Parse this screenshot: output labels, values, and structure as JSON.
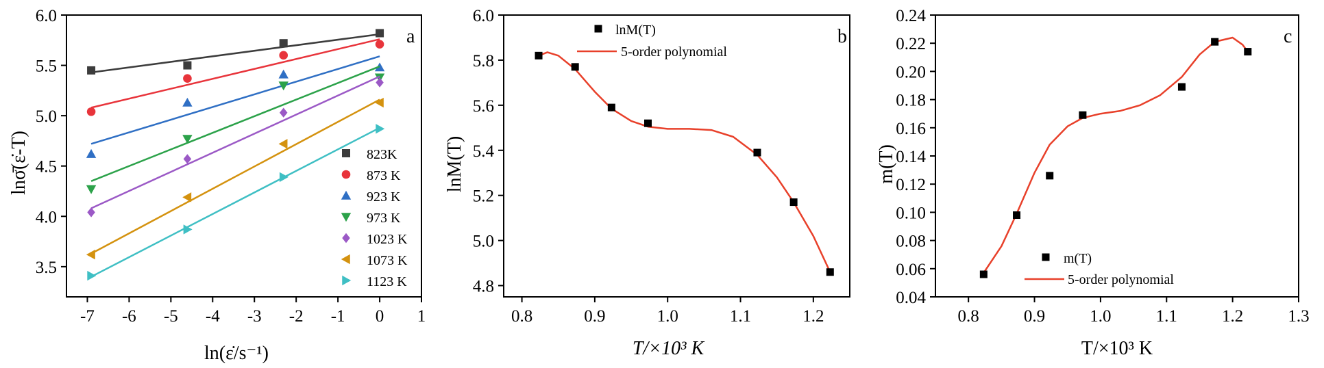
{
  "chart_data": [
    {
      "type": "scatter",
      "panel_label": "a",
      "xlabel": "ln(ε̇/s⁻¹)",
      "ylabel": "lnσ̄(ε̇-T)",
      "xlim": [
        -7.5,
        1
      ],
      "ylim": [
        3.2,
        6.0
      ],
      "xticks": [
        "-7",
        "-6",
        "-5",
        "-4",
        "-3",
        "-2",
        "-1",
        "0",
        "1"
      ],
      "yticks": [
        "3.5",
        "4.0",
        "4.5",
        "5.0",
        "5.5",
        "6.0"
      ],
      "legend_position": "lower-right",
      "x": [
        -6.908,
        -4.605,
        -2.303,
        0.0
      ],
      "series": [
        {
          "name": "823K",
          "color": "#3c3c3c",
          "marker": "square",
          "values": [
            5.45,
            5.5,
            5.72,
            5.82
          ],
          "fit": [
            5.43,
            5.81
          ]
        },
        {
          "name": "873 K",
          "color": "#e8343b",
          "marker": "circle",
          "values": [
            5.04,
            5.37,
            5.6,
            5.71
          ],
          "fit": [
            5.08,
            5.76
          ]
        },
        {
          "name": "923 K",
          "color": "#2f6fc4",
          "marker": "triangle-up",
          "values": [
            4.62,
            5.13,
            5.41,
            5.48
          ],
          "fit": [
            4.72,
            5.59
          ]
        },
        {
          "name": "973 K",
          "color": "#2ca24a",
          "marker": "triangle-down",
          "values": [
            4.27,
            4.77,
            5.3,
            5.38
          ],
          "fit": [
            4.35,
            5.49
          ]
        },
        {
          "name": "1023 K",
          "color": "#9b59c6",
          "marker": "diamond",
          "values": [
            4.04,
            4.57,
            5.03,
            5.33
          ],
          "fit": [
            4.08,
            5.39
          ]
        },
        {
          "name": "1073 K",
          "color": "#d4920f",
          "marker": "triangle-left",
          "values": [
            3.62,
            4.19,
            4.72,
            5.13
          ],
          "fit": [
            3.63,
            5.16
          ]
        },
        {
          "name": "1123 K",
          "color": "#3fbfc4",
          "marker": "triangle-right",
          "values": [
            3.41,
            3.87,
            4.39,
            4.87
          ],
          "fit": [
            3.4,
            4.88
          ]
        }
      ]
    },
    {
      "type": "scatter",
      "panel_label": "b",
      "xlabel": "T/×10³ K",
      "ylabel": "lnM(T)",
      "xlim": [
        0.775,
        1.25
      ],
      "ylim": [
        4.75,
        6.0
      ],
      "xticks": [
        "0.8",
        "0.9",
        "1.0",
        "1.1",
        "1.2"
      ],
      "yticks": [
        "4.8",
        "5.0",
        "5.2",
        "5.4",
        "5.6",
        "5.8",
        "6.0"
      ],
      "legend_position": "top-center",
      "series": [
        {
          "name": "lnM(T)",
          "color": "#000000",
          "marker": "square",
          "x": [
            0.823,
            0.873,
            0.923,
            0.973,
            1.123,
            1.173,
            1.223
          ],
          "values": [
            5.82,
            5.77,
            5.59,
            5.52,
            5.39,
            5.17,
            4.86
          ]
        },
        {
          "name": "5-order polynomial",
          "color": "#e8402a",
          "type": "line",
          "x": [
            0.823,
            0.835,
            0.85,
            0.873,
            0.9,
            0.923,
            0.95,
            0.973,
            1.0,
            1.03,
            1.06,
            1.09,
            1.123,
            1.15,
            1.173,
            1.2,
            1.223
          ],
          "values": [
            5.82,
            5.835,
            5.82,
            5.76,
            5.66,
            5.585,
            5.53,
            5.505,
            5.495,
            5.495,
            5.49,
            5.46,
            5.38,
            5.28,
            5.17,
            5.02,
            4.86
          ]
        }
      ]
    },
    {
      "type": "scatter",
      "panel_label": "c",
      "xlabel": "T/×10³ K",
      "ylabel": "m(T)",
      "xlim": [
        0.75,
        1.3
      ],
      "ylim": [
        0.04,
        0.24
      ],
      "xticks": [
        "0.8",
        "0.9",
        "1.0",
        "1.1",
        "1.2",
        "1.3"
      ],
      "yticks": [
        "0.04",
        "0.06",
        "0.08",
        "0.10",
        "0.12",
        "0.14",
        "0.16",
        "0.18",
        "0.20",
        "0.22",
        "0.24"
      ],
      "legend_position": "bottom-left",
      "series": [
        {
          "name": "m(T)",
          "color": "#000000",
          "marker": "square",
          "x": [
            0.823,
            0.873,
            0.923,
            0.973,
            1.123,
            1.173,
            1.223
          ],
          "values": [
            0.056,
            0.098,
            0.126,
            0.169,
            0.189,
            0.221,
            0.214
          ]
        },
        {
          "name": "5-order polynomial",
          "color": "#e8402a",
          "type": "line",
          "x": [
            0.823,
            0.85,
            0.873,
            0.9,
            0.923,
            0.95,
            0.973,
            1.0,
            1.03,
            1.06,
            1.09,
            1.123,
            1.15,
            1.173,
            1.2,
            1.215,
            1.223
          ],
          "values": [
            0.057,
            0.076,
            0.099,
            0.128,
            0.148,
            0.161,
            0.167,
            0.17,
            0.172,
            0.176,
            0.183,
            0.196,
            0.212,
            0.221,
            0.224,
            0.219,
            0.214
          ]
        }
      ]
    }
  ]
}
